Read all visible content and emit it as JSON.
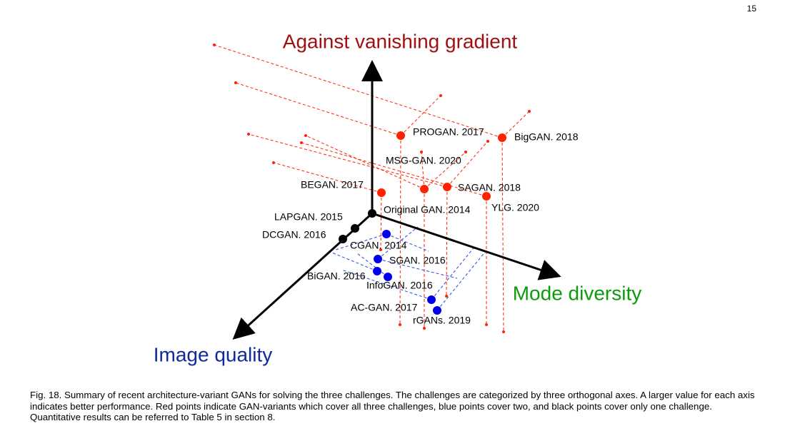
{
  "page_number": "15",
  "figure": {
    "axes": {
      "vertical": "Against vanishing gradient",
      "horizontal": "Mode diversity",
      "depth": "Image quality"
    },
    "points": [
      {
        "label": "PROGAN. 2017",
        "color": "#ff2200"
      },
      {
        "label": "BigGAN. 2018",
        "color": "#ff2200"
      },
      {
        "label": "MSG-GAN. 2020",
        "color": "#ff2200"
      },
      {
        "label": "BEGAN. 2017",
        "color": "#ff2200"
      },
      {
        "label": "SAGAN. 2018",
        "color": "#ff2200"
      },
      {
        "label": "YLG. 2020",
        "color": "#ff2200"
      },
      {
        "label": "Original GAN. 2014",
        "color": "#000000"
      },
      {
        "label": "LAPGAN. 2015",
        "color": "#000000"
      },
      {
        "label": "DCGAN. 2016",
        "color": "#000000"
      },
      {
        "label": "CGAN. 2014",
        "color": "#0000ee"
      },
      {
        "label": "SGAN. 2016",
        "color": "#0000ee"
      },
      {
        "label": "BiGAN. 2016",
        "color": "#0000ee"
      },
      {
        "label": "InfoGAN. 2016",
        "color": "#0000ee"
      },
      {
        "label": "AC-GAN. 2017",
        "color": "#0000ee"
      },
      {
        "label": "rGANs. 2019",
        "color": "#0000ee"
      }
    ]
  },
  "caption": "Fig. 18. Summary of recent architecture-variant GANs for solving the three challenges. The challenges are categorized by three orthogonal axes. A larger value for each axis indicates better performance. Red points indicate GAN-variants which cover all three challenges, blue points cover two, and black points cover only one challenge. Quantitative results can be referred to Table 5 in section 8."
}
